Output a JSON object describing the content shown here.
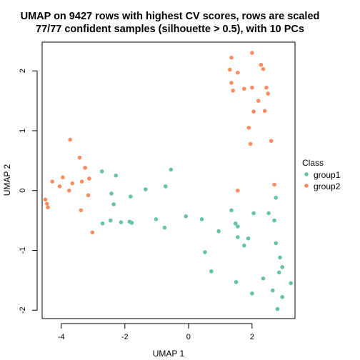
{
  "chart_data": {
    "type": "scatter",
    "title_lines": [
      "UMAP on 9427 rows with highest CV scores, rows are scaled",
      "77/77 confident samples (silhouette > 0.5), with 10 PCs"
    ],
    "xlabel": "UMAP 1",
    "ylabel": "UMAP 2",
    "xlim": [
      -4.6,
      3.35
    ],
    "ylim": [
      -2.14,
      2.48
    ],
    "xticks": [
      -4,
      -2,
      0,
      2
    ],
    "yticks": [
      -2,
      -1,
      0,
      1,
      2
    ],
    "grid": false,
    "legend": {
      "title": "Class",
      "position": "right",
      "entries": [
        "group1",
        "group2"
      ]
    },
    "colors": {
      "group1": "#66C2A5",
      "group2": "#FC8D62"
    },
    "series": [
      {
        "name": "group1",
        "points": [
          [
            -2.72,
            0.32
          ],
          [
            -2.28,
            0.25
          ],
          [
            -2.42,
            -0.05
          ],
          [
            -2.35,
            -0.23
          ],
          [
            -2.7,
            -0.55
          ],
          [
            -2.45,
            -0.5
          ],
          [
            -2.12,
            -0.53
          ],
          [
            -1.85,
            -0.52
          ],
          [
            -1.78,
            -0.54
          ],
          [
            -1.82,
            -0.1
          ],
          [
            -1.35,
            0.02
          ],
          [
            -0.72,
            0.07
          ],
          [
            -0.55,
            0.35
          ],
          [
            -1.02,
            -0.48
          ],
          [
            -0.75,
            -0.62
          ],
          [
            -0.08,
            -0.43
          ],
          [
            0.42,
            -0.48
          ],
          [
            0.52,
            -1.03
          ],
          [
            0.72,
            -1.35
          ],
          [
            0.95,
            -0.68
          ],
          [
            1.35,
            -0.33
          ],
          [
            1.48,
            -0.55
          ],
          [
            1.55,
            -0.78
          ],
          [
            1.75,
            -0.92
          ],
          [
            1.88,
            -0.8
          ],
          [
            1.55,
            -0.6
          ],
          [
            2.05,
            -0.38
          ],
          [
            2.52,
            -0.38
          ],
          [
            2.75,
            -0.12
          ],
          [
            2.7,
            -0.5
          ],
          [
            2.75,
            -0.88
          ],
          [
            2.88,
            -1.12
          ],
          [
            2.95,
            -1.28
          ],
          [
            2.85,
            -1.37
          ],
          [
            3.22,
            -1.55
          ],
          [
            2.65,
            -1.67
          ],
          [
            2.95,
            -1.78
          ],
          [
            2.8,
            -1.98
          ],
          [
            2.35,
            -1.47
          ],
          [
            2.0,
            -1.72
          ],
          [
            1.5,
            -1.53
          ]
        ]
      },
      {
        "name": "group2",
        "points": [
          [
            -3.72,
            0.85
          ],
          [
            -3.42,
            0.55
          ],
          [
            -3.25,
            0.38
          ],
          [
            -3.12,
            0.2
          ],
          [
            -3.35,
            0.15
          ],
          [
            -3.65,
            0.12
          ],
          [
            -3.95,
            0.22
          ],
          [
            -4.05,
            0.07
          ],
          [
            -4.28,
            0.15
          ],
          [
            -3.75,
            0.0
          ],
          [
            -3.15,
            -0.08
          ],
          [
            -3.38,
            -0.33
          ],
          [
            -4.5,
            -0.15
          ],
          [
            -4.45,
            -0.22
          ],
          [
            -4.42,
            -0.28
          ],
          [
            -3.02,
            -0.7
          ],
          [
            1.35,
            2.22
          ],
          [
            2.0,
            2.3
          ],
          [
            2.28,
            2.1
          ],
          [
            2.35,
            2.03
          ],
          [
            1.3,
            2.02
          ],
          [
            1.55,
            1.97
          ],
          [
            1.35,
            1.8
          ],
          [
            1.4,
            1.67
          ],
          [
            1.75,
            1.7
          ],
          [
            2.0,
            1.72
          ],
          [
            2.45,
            1.72
          ],
          [
            2.5,
            1.62
          ],
          [
            2.2,
            1.5
          ],
          [
            2.4,
            1.33
          ],
          [
            2.05,
            1.32
          ],
          [
            1.9,
            1.05
          ],
          [
            2.6,
            0.83
          ],
          [
            1.95,
            0.78
          ],
          [
            2.7,
            0.1
          ],
          [
            1.55,
            0.0
          ]
        ]
      }
    ]
  }
}
